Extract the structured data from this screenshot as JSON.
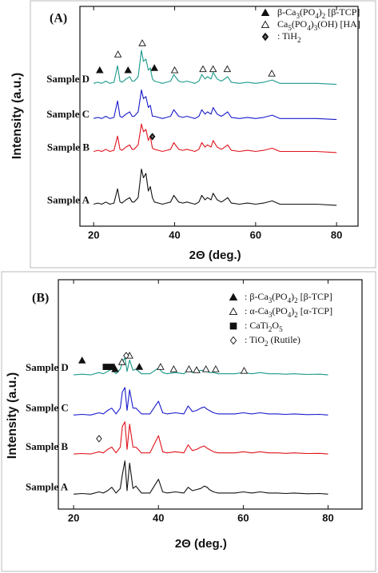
{
  "chart_data": [
    {
      "type": "line",
      "panel_label": "(A)",
      "xlabel": "2Θ (deg.)",
      "ylabel": "Intensity (a.u.)",
      "xlim": [
        16.6,
        85.3
      ],
      "ylim": [
        0,
        100
      ],
      "xticks": [
        20,
        40,
        60,
        80
      ],
      "x": [
        20,
        21,
        22,
        23,
        24,
        25,
        25.9,
        26.5,
        27,
        28,
        28.9,
        29.5,
        30,
        31,
        31.8,
        32.3,
        32.9,
        33.5,
        34,
        34.5,
        35,
        36,
        37,
        38,
        39,
        39.8,
        41,
        42,
        43,
        44,
        45,
        46,
        46.7,
        47.5,
        48.1,
        49,
        49.5,
        50.5,
        51.5,
        52,
        53.1,
        54,
        56,
        58,
        60,
        62,
        64.1,
        66,
        70,
        75,
        80
      ],
      "series": [
        {
          "name": "Sample D",
          "color": "#1a9a8a",
          "values": [
            65,
            65.5,
            65,
            66,
            65,
            65.5,
            73,
            66,
            65.5,
            67,
            68,
            66,
            66,
            68,
            80,
            75,
            76,
            71,
            72,
            67,
            66,
            65.5,
            65,
            65.5,
            66,
            69,
            66,
            65.5,
            66,
            65.5,
            65,
            66,
            69,
            67,
            68,
            67,
            70,
            67,
            66,
            66.5,
            68,
            65.5,
            65,
            65.5,
            65,
            65.5,
            66.5,
            65,
            65,
            65,
            64.5
          ]
        },
        {
          "name": "Sample C",
          "color": "#1a1acc",
          "values": [
            49,
            49.5,
            49,
            50,
            49,
            49.5,
            57,
            50,
            49.5,
            51,
            52,
            50,
            50,
            52,
            62,
            58,
            59,
            54,
            55,
            50,
            50,
            49.5,
            49,
            49.5,
            50,
            53,
            50,
            49.5,
            50,
            49.5,
            49,
            50,
            53,
            51,
            52,
            51,
            54,
            51,
            50,
            50.5,
            52,
            49.5,
            49,
            49.5,
            49,
            49.5,
            50.5,
            49,
            49,
            49,
            48.5
          ]
        },
        {
          "name": "Sample B",
          "color": "#e0141c",
          "values": [
            34,
            34.5,
            34,
            35,
            34,
            34.5,
            41,
            35,
            34.5,
            36,
            37,
            35,
            35,
            37,
            46.5,
            43,
            44,
            39,
            41,
            35.5,
            35,
            34.5,
            34,
            34.5,
            35,
            38,
            35,
            34.5,
            35,
            34.5,
            34,
            35,
            38,
            36,
            37,
            36,
            39,
            36,
            35,
            35.5,
            37,
            34.5,
            34,
            34.5,
            34,
            34.5,
            35.5,
            34,
            34,
            34,
            33.5
          ]
        },
        {
          "name": "Sample A",
          "color": "#111111",
          "values": [
            10,
            10.5,
            10,
            11,
            10,
            10.5,
            17,
            11,
            10.5,
            12,
            13,
            11,
            11,
            13,
            26,
            22,
            24,
            16,
            18,
            13,
            11,
            10.5,
            10,
            10.5,
            11,
            14,
            11,
            10.5,
            11,
            10.5,
            10,
            11,
            14,
            12,
            13,
            12,
            15,
            12,
            11,
            11.5,
            13,
            10.5,
            10,
            10.5,
            10,
            10.5,
            11.5,
            10,
            10,
            10,
            9.5
          ]
        }
      ],
      "legend": [
        {
          "symbol": "filled-triangle",
          "label": "β-Ca3(PO4)2 [β-TCP]"
        },
        {
          "symbol": "open-triangle",
          "label": "Ca5(PO4)3(OH) [HA]"
        },
        {
          "symbol": "filled-diamond",
          "label": ": TiH2"
        }
      ],
      "markers": [
        {
          "symbol": "filled-triangle",
          "x": 21.5,
          "y": 69.5
        },
        {
          "symbol": "filled-triangle",
          "x": 28.5,
          "y": 69.5
        },
        {
          "symbol": "filled-triangle",
          "x": 35,
          "y": 70.5
        },
        {
          "symbol": "open-triangle",
          "x": 26,
          "y": 76.7
        },
        {
          "symbol": "open-triangle",
          "x": 32,
          "y": 81.8
        },
        {
          "symbol": "open-triangle",
          "x": 40,
          "y": 69.5
        },
        {
          "symbol": "open-triangle",
          "x": 47,
          "y": 70
        },
        {
          "symbol": "open-triangle",
          "x": 49.5,
          "y": 70
        },
        {
          "symbol": "open-triangle",
          "x": 53,
          "y": 70
        },
        {
          "symbol": "open-triangle",
          "x": 64,
          "y": 68
        },
        {
          "symbol": "filled-diamond",
          "x": 34.5,
          "y": 39.3
        }
      ]
    },
    {
      "type": "line",
      "panel_label": "(B)",
      "xlabel": "2Θ (deg.)",
      "ylabel": "Intensity (a.u.)",
      "xlim": [
        16.4,
        88
      ],
      "ylim": [
        0,
        100
      ],
      "xticks": [
        20,
        40,
        60,
        80
      ],
      "x": [
        20,
        22,
        24,
        26,
        27,
        28,
        29,
        30,
        31,
        31.5,
        32.1,
        32.6,
        33.2,
        34,
        34.7,
        36,
        38,
        40,
        41,
        42,
        44,
        46,
        47,
        48,
        49,
        50,
        50.8,
        51.5,
        52,
        53,
        54,
        56,
        58,
        60,
        62,
        64,
        66,
        68,
        70,
        72,
        75,
        78,
        80
      ],
      "series": [
        {
          "name": "Sample D",
          "color": "#1a9a8a",
          "values": [
            58.5,
            58.8,
            58.5,
            59.5,
            59,
            60,
            61,
            59,
            61,
            64,
            66,
            60,
            65,
            60.5,
            61,
            59,
            59,
            61.5,
            59.5,
            59,
            59.5,
            59,
            60.5,
            59.5,
            60,
            60.5,
            60.5,
            60,
            59.5,
            59.5,
            59,
            59,
            59,
            59.5,
            59,
            59.5,
            59,
            59,
            58.8,
            59,
            58.7,
            58.8,
            58.5
          ]
        },
        {
          "name": "Sample C",
          "color": "#1a1acc",
          "values": [
            41,
            41.3,
            41,
            42,
            41.5,
            43,
            44,
            41.5,
            44,
            51,
            53,
            43,
            52,
            44,
            44,
            41.5,
            41.5,
            47,
            42,
            41.5,
            42,
            41.5,
            45,
            42.5,
            43,
            44,
            44.5,
            43.5,
            43,
            42,
            41.5,
            41.5,
            41.5,
            42,
            41.5,
            42,
            41.5,
            41.5,
            41.3,
            41.5,
            41.2,
            41.3,
            41
          ]
        },
        {
          "name": "Sample B",
          "color": "#e0141c",
          "values": [
            24,
            24.2,
            24,
            25,
            24.5,
            26,
            27,
            24.5,
            27,
            36,
            38,
            26,
            37,
            27,
            27,
            24.5,
            24.5,
            32,
            25,
            24.5,
            25,
            24.5,
            28,
            25.5,
            26,
            27,
            27.5,
            26.5,
            26,
            25,
            24.5,
            24.5,
            24.5,
            25,
            24.5,
            25,
            24.5,
            24.5,
            24.3,
            24.5,
            24.2,
            24.3,
            24
          ]
        },
        {
          "name": "Sample A",
          "color": "#111111",
          "values": [
            6.5,
            6.8,
            6.5,
            7.5,
            7,
            8,
            9.5,
            7,
            9,
            15,
            21,
            8,
            20,
            9,
            10,
            7,
            7,
            13,
            7.5,
            7,
            7.5,
            7,
            9.5,
            8,
            8.5,
            9,
            10,
            9.5,
            8.5,
            7.5,
            7,
            7,
            7,
            7.5,
            7,
            7.5,
            7,
            7,
            6.8,
            7,
            6.7,
            6.8,
            6.5
          ]
        }
      ],
      "legend": [
        {
          "symbol": "filled-triangle",
          "label": ": β-Ca3(PO4)2 [β-TCP]"
        },
        {
          "symbol": "open-triangle",
          "label": ": α-Ca3(PO4)2 [α-TCP]"
        },
        {
          "symbol": "filled-square",
          "label": ": CaTi2O5"
        },
        {
          "symbol": "open-diamond",
          "label": ": TiO2 (Rutile)"
        }
      ],
      "markers": [
        {
          "symbol": "filled-triangle",
          "x": 22,
          "y": 63.4
        },
        {
          "symbol": "filled-triangle",
          "x": 29.8,
          "y": 59.6
        },
        {
          "symbol": "filled-triangle",
          "x": 35.5,
          "y": 60.6
        },
        {
          "symbol": "filled-square",
          "x": 27.6,
          "y": 60.6
        },
        {
          "symbol": "filled-square",
          "x": 29,
          "y": 60.6
        },
        {
          "symbol": "open-triangle",
          "x": 31.4,
          "y": 62.7
        },
        {
          "symbol": "open-triangle",
          "x": 33.2,
          "y": 65.5
        },
        {
          "symbol": "open-triangle",
          "x": 40.5,
          "y": 60.6
        },
        {
          "symbol": "open-triangle",
          "x": 43.6,
          "y": 59.6
        },
        {
          "symbol": "open-triangle",
          "x": 47.2,
          "y": 59.6
        },
        {
          "symbol": "open-triangle",
          "x": 49,
          "y": 59.2
        },
        {
          "symbol": "open-triangle",
          "x": 51.2,
          "y": 59.6
        },
        {
          "symbol": "open-triangle",
          "x": 53.5,
          "y": 59.6
        },
        {
          "symbol": "open-triangle",
          "x": 60.2,
          "y": 58.9
        },
        {
          "symbol": "open-diamond",
          "x": 32.4,
          "y": 65.5
        },
        {
          "symbol": "open-diamond",
          "x": 26,
          "y": 29.3
        }
      ]
    }
  ]
}
